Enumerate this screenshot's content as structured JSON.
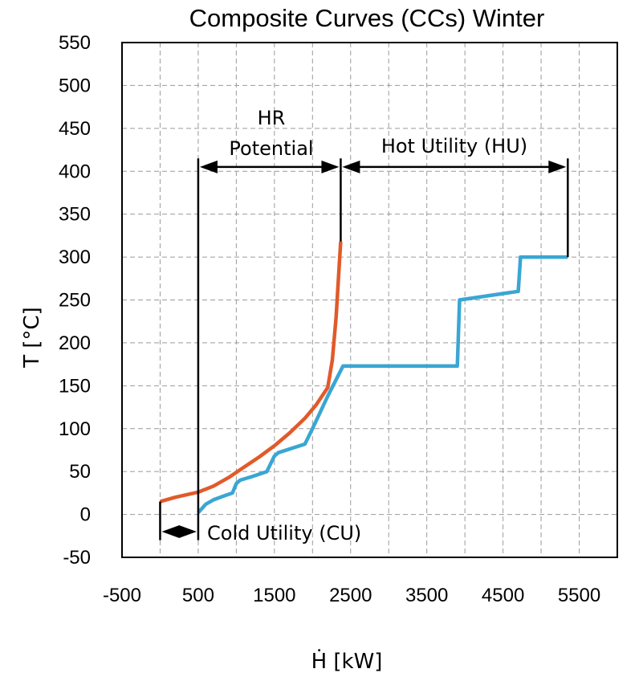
{
  "chart_data": {
    "type": "line",
    "title": "Composite Curves (CCs) Winter",
    "xlabel": "Ḣ [kW]",
    "ylabel": "T [°C]",
    "xlim": [
      -500,
      6000
    ],
    "ylim": [
      -50,
      550
    ],
    "x_ticks": [
      "-500",
      "500",
      "1500",
      "2500",
      "3500",
      "4500",
      "5500"
    ],
    "x_tick_values": [
      -500,
      500,
      1500,
      2500,
      3500,
      4500,
      5500
    ],
    "y_ticks": [
      "550",
      "500",
      "450",
      "400",
      "350",
      "300",
      "250",
      "200",
      "150",
      "100",
      "50",
      "0",
      "-50"
    ],
    "y_tick_values": [
      550,
      500,
      450,
      400,
      350,
      300,
      250,
      200,
      150,
      100,
      50,
      0,
      -50
    ],
    "grid": true,
    "series": [
      {
        "name": "",
        "color": "#e15a2b",
        "x": [
          0,
          200,
          500,
          700,
          900,
          1100,
          1300,
          1500,
          1700,
          1900,
          2050,
          2200,
          2260,
          2310,
          2340,
          2370
        ],
        "y": [
          15,
          20,
          26,
          33,
          43,
          55,
          67,
          80,
          95,
          112,
          128,
          148,
          180,
          230,
          275,
          318
        ]
      },
      {
        "name": "",
        "color": "#3aa6d3",
        "x": [
          500,
          600,
          700,
          850,
          950,
          1000,
          1050,
          1200,
          1400,
          1500,
          1550,
          1900,
          2000,
          2200,
          2400,
          3900,
          3930,
          4700,
          4730,
          5350
        ],
        "y": [
          2,
          12,
          17,
          22,
          25,
          36,
          40,
          44,
          50,
          68,
          72,
          82,
          100,
          138,
          173,
          173,
          250,
          260,
          300,
          300
        ]
      }
    ],
    "annotations": {
      "hr_line1": "HR",
      "hr_line2": "Potential",
      "hu": "Hot Utility (HU)",
      "cu": "Cold Utility (CU)"
    },
    "annotation_values": {
      "hr_potential_x": [
        500,
        2370
      ],
      "hot_utility_x": [
        2370,
        5350
      ],
      "cold_utility_x": [
        0,
        500
      ],
      "arrow_level_y": [
        405,
        -20
      ]
    }
  }
}
